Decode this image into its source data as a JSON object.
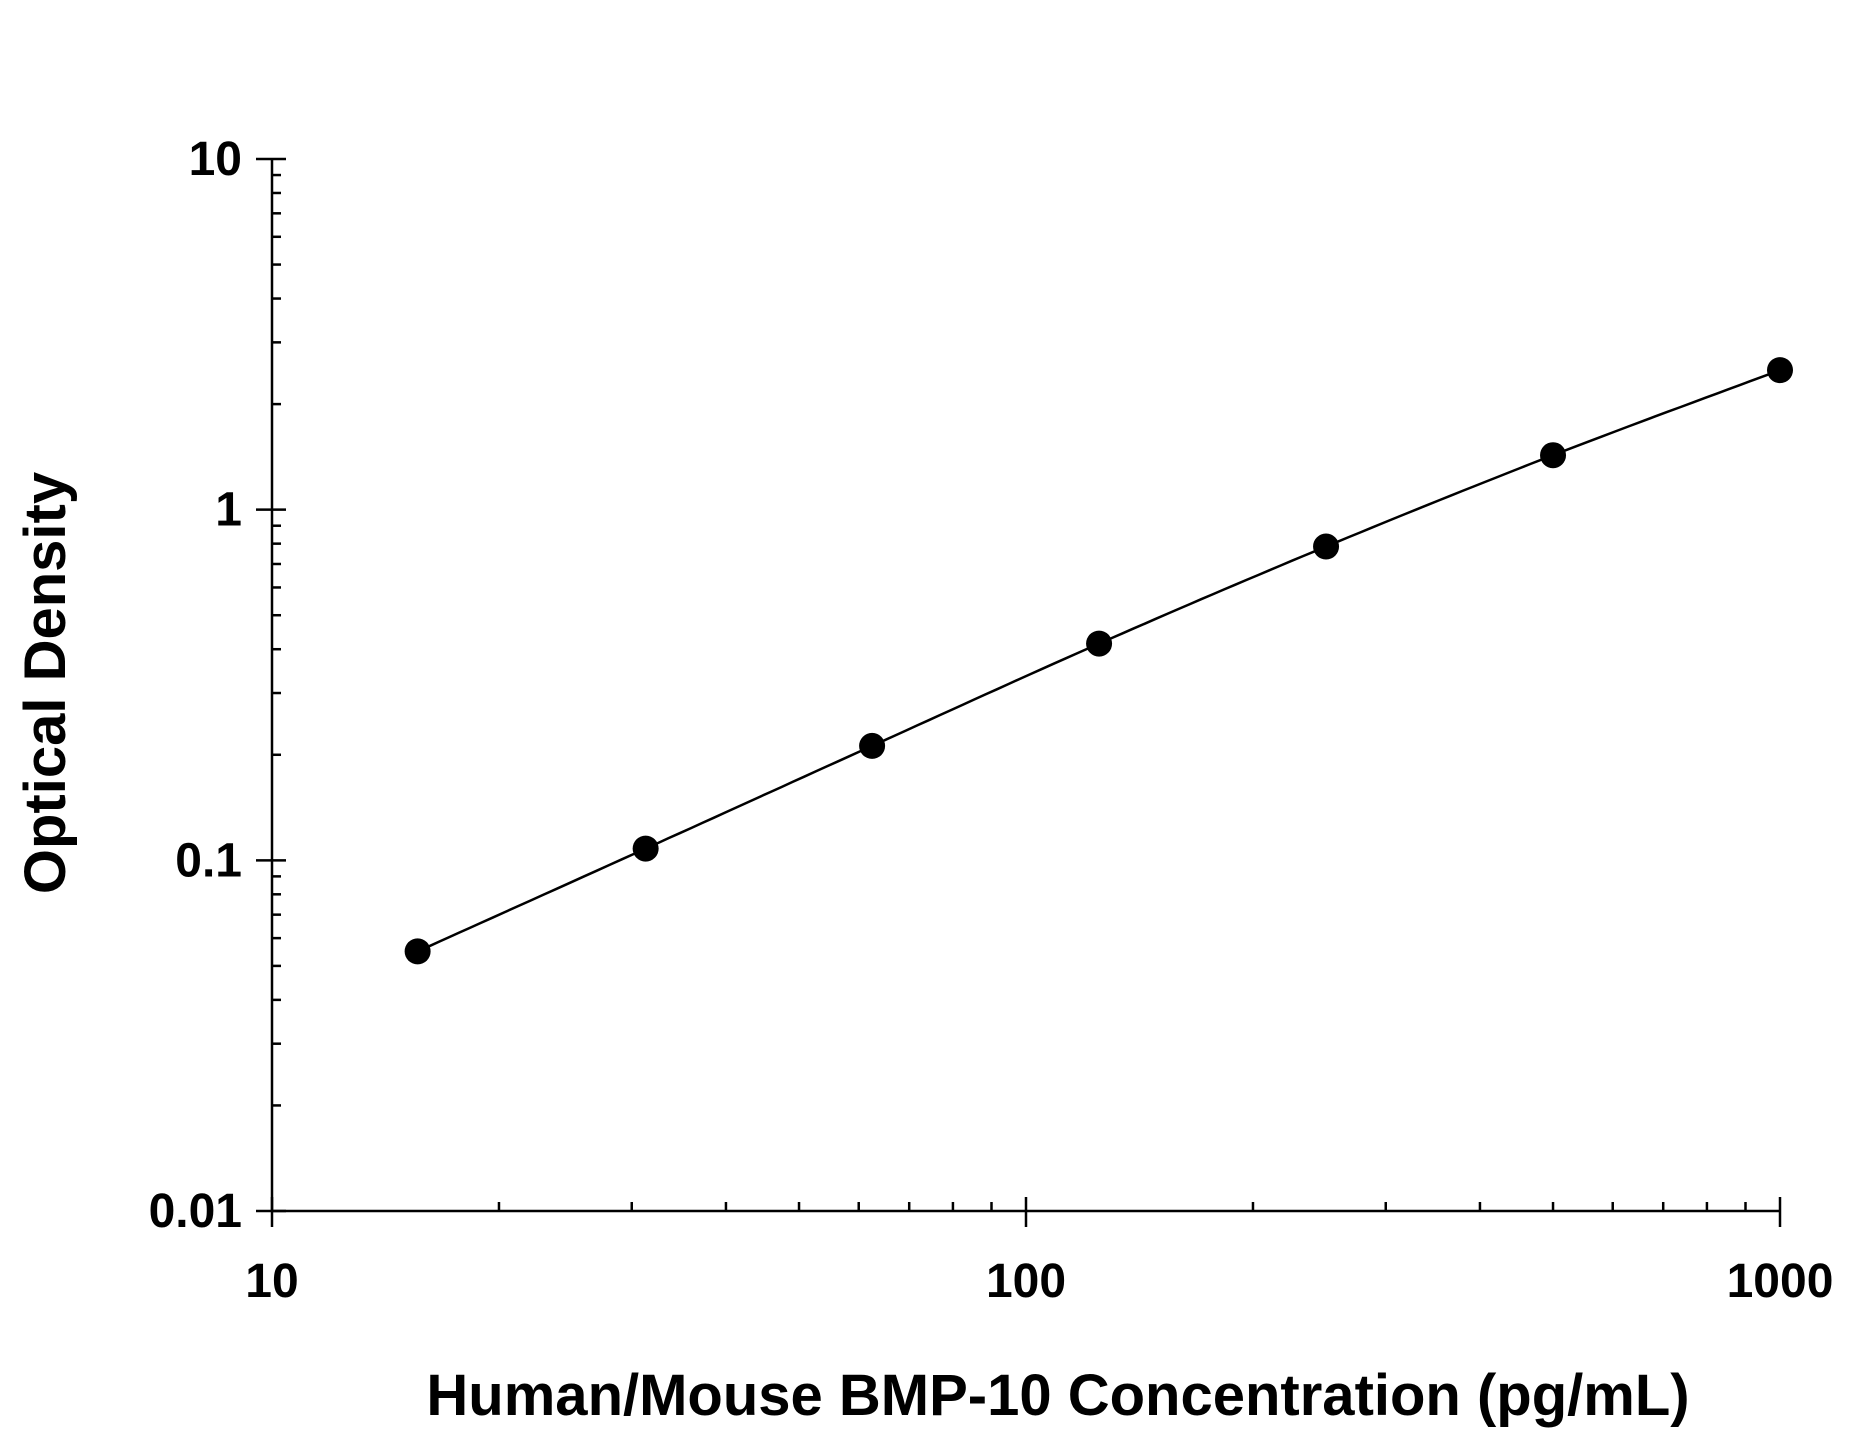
{
  "chart_data": {
    "type": "scatter",
    "title": "",
    "xlabel": "Human/Mouse BMP-10 Concentration (pg/mL)",
    "ylabel": "Optical Density",
    "x_scale": "log",
    "y_scale": "log",
    "xlim": [
      10,
      1000
    ],
    "ylim": [
      0.01,
      10
    ],
    "x_ticks": [
      {
        "value": 10,
        "label": "10"
      },
      {
        "value": 100,
        "label": "100"
      },
      {
        "value": 1000,
        "label": "1000"
      }
    ],
    "y_ticks": [
      {
        "value": 0.01,
        "label": "0.01"
      },
      {
        "value": 0.1,
        "label": "0.1"
      },
      {
        "value": 1,
        "label": "1"
      },
      {
        "value": 10,
        "label": "10"
      }
    ],
    "grid": false,
    "legend": "none",
    "series": [
      {
        "x": [
          15.6,
          31.3,
          62.5,
          125,
          250,
          500,
          1000
        ],
        "y": [
          0.055,
          0.108,
          0.212,
          0.415,
          0.785,
          1.43,
          2.5
        ],
        "marker": "circle",
        "color": "#000000",
        "fit_line": true
      }
    ]
  }
}
